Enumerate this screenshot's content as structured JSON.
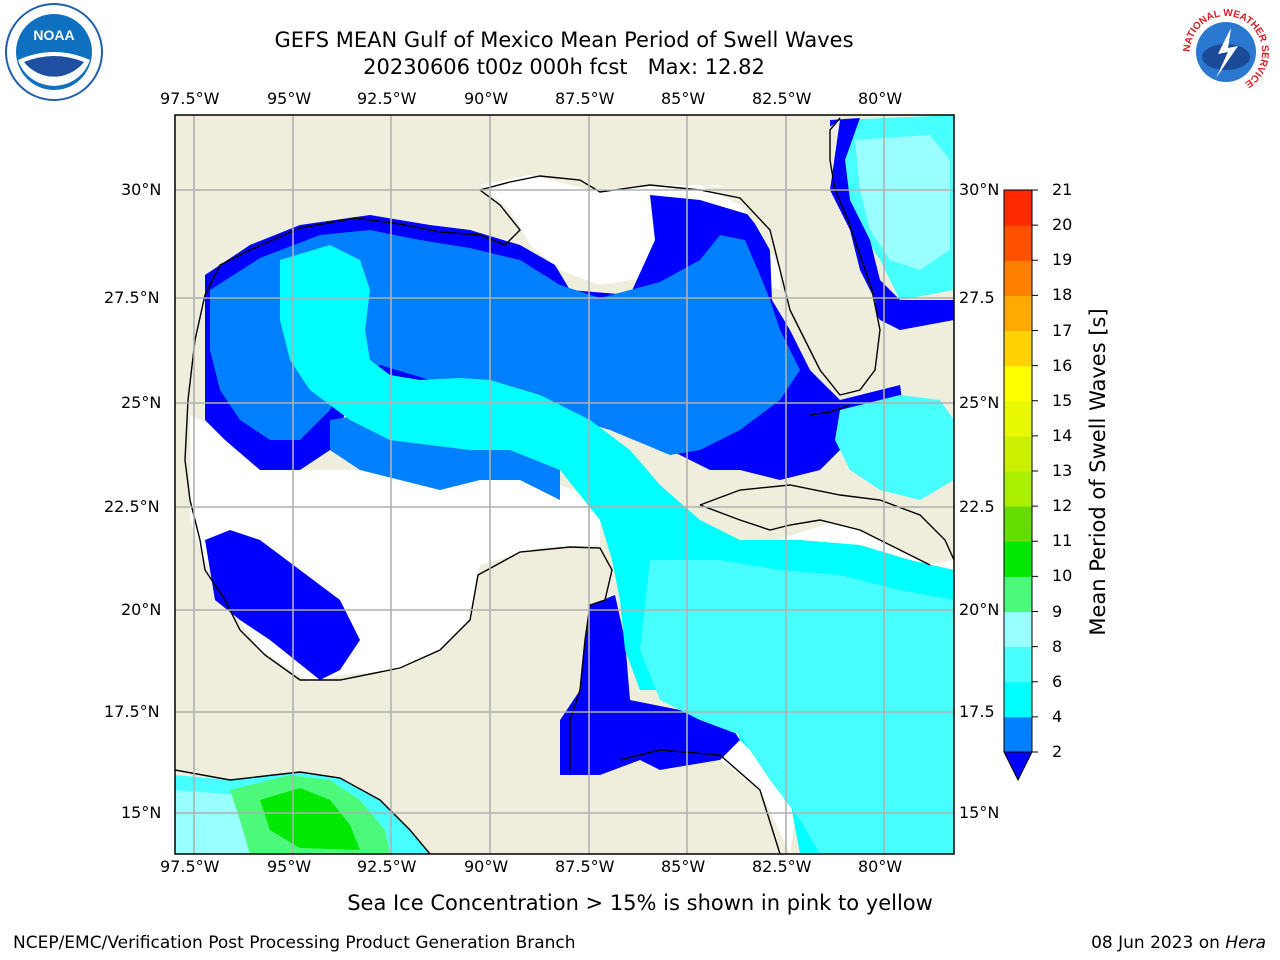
{
  "header": {
    "title_line1": "GEFS MEAN Gulf of Mexico Mean Period of Swell Waves",
    "title_line2": "20230606 t00z 000h fcst   Max: 12.82"
  },
  "logos": {
    "left": "noaa-logo",
    "right": "nws-logo",
    "right_text": "NATIONAL WEATHER SERVICE"
  },
  "map": {
    "lon_ticks": [
      "97.5°W",
      "95°W",
      "92.5°W",
      "90°W",
      "87.5°W",
      "85°W",
      "82.5°W",
      "80°W"
    ],
    "lat_ticks": [
      "30°N",
      "27.5°N",
      "25°N",
      "22.5°N",
      "20°N",
      "17.5°N",
      "15°N"
    ],
    "lat_ticks_right": [
      "30°N",
      "27.5",
      "25°N",
      "22.5",
      "20°N",
      "17.5",
      "15°N"
    ],
    "colors": {
      "land": "#efeedc",
      "no_data": "#ffffff",
      "grid": "#b0b0b0",
      "coast": "#000000"
    }
  },
  "colorbar": {
    "label": "Mean Period of Swell Waves [s]",
    "ticks": [
      "2",
      "4",
      "6",
      "8",
      "9",
      "10",
      "11",
      "12",
      "13",
      "14",
      "15",
      "16",
      "17",
      "18",
      "19",
      "20",
      "21"
    ],
    "colors": [
      "#0000ff",
      "#0080ff",
      "#00ffff",
      "#48ffff",
      "#99ffff",
      "#4df97a",
      "#00e800",
      "#66dd00",
      "#aaee00",
      "#ccf000",
      "#e8f800",
      "#ffff00",
      "#ffd200",
      "#ffaa00",
      "#ff8000",
      "#ff5000",
      "#ff2800",
      "#ff0000"
    ],
    "under_color": "#0000ff"
  },
  "notes": {
    "ice": "Sea Ice Concentration > 15% is shown in pink to yellow"
  },
  "footer": {
    "left": "NCEP/EMC/Verification Post Processing Product Generation Branch",
    "right_date": "08 Jun 2023 on ",
    "right_host": "Hera"
  }
}
